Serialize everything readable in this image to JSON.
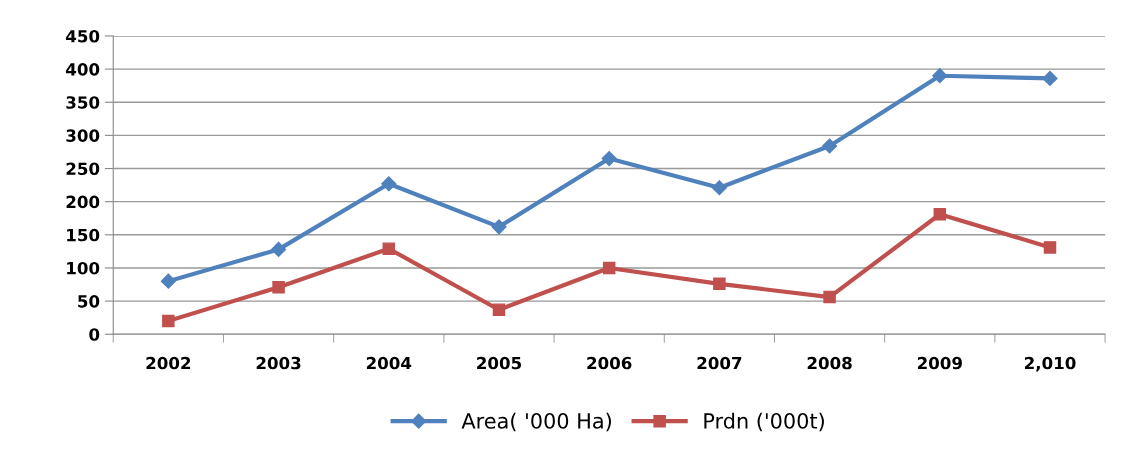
{
  "chart_data": {
    "type": "line",
    "categories": [
      "2002",
      "2003",
      "2004",
      "2005",
      "2006",
      "2007",
      "2008",
      "2009",
      "2,010"
    ],
    "series": [
      {
        "name": "Area( '000 Ha)",
        "color": "#4f81bd",
        "marker": "diamond",
        "values": [
          80,
          128,
          227,
          162,
          265,
          221,
          284,
          390,
          386
        ]
      },
      {
        "name": "Prdn ('000t)",
        "color": "#c0504d",
        "marker": "square",
        "values": [
          20,
          71,
          129,
          37,
          100,
          76,
          56,
          181,
          131
        ]
      }
    ],
    "ylim": [
      0,
      450
    ],
    "yticks": [
      0,
      50,
      100,
      150,
      200,
      250,
      300,
      350,
      400,
      450
    ],
    "grid": "y",
    "legend": "bottom",
    "line_style": "solid"
  }
}
